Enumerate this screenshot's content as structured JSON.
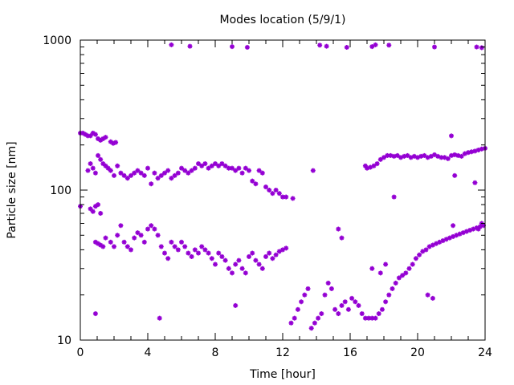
{
  "chart_data": {
    "type": "scatter",
    "title": "Modes location (5/9/1)",
    "xlabel": "Time [hour]",
    "ylabel": "Particle size [nm]",
    "xlim": [
      0,
      24
    ],
    "ylim": [
      10,
      1000
    ],
    "yscale": "log",
    "grid": false,
    "legend": "none",
    "marker_color": "#9400d3",
    "xticks": [
      0,
      4,
      8,
      12,
      16,
      20,
      24
    ],
    "xtick_labels": [
      "0",
      "4",
      "8",
      "12",
      "16",
      "20",
      "24"
    ],
    "yticks": [
      10,
      100,
      1000
    ],
    "ytick_labels": [
      "10",
      "100",
      "1000"
    ],
    "series": [
      {
        "x": [
          0.0,
          0.15,
          0.3,
          0.45,
          0.6,
          0.75,
          0.9,
          1.05,
          1.2,
          1.35,
          1.5,
          1.8,
          1.95,
          2.1,
          5.4,
          6.5,
          9.0,
          9.9,
          14.2,
          14.6,
          15.8,
          17.3,
          17.5,
          18.3,
          21.0,
          23.5,
          23.8
        ],
        "y": [
          240,
          240,
          235,
          230,
          230,
          240,
          235,
          220,
          215,
          220,
          225,
          210,
          205,
          208,
          930,
          910,
          905,
          895,
          925,
          910,
          895,
          905,
          930,
          925,
          900,
          900,
          890
        ]
      },
      {
        "x": [
          0.45,
          0.6,
          0.75,
          0.9,
          1.05,
          1.2,
          1.35,
          1.5,
          1.65,
          1.8,
          2.0,
          2.2,
          2.4,
          2.6,
          2.8,
          3.0,
          3.2,
          3.4,
          3.6,
          3.8,
          4.0,
          4.2,
          4.4,
          4.6,
          4.8,
          5.0,
          5.2,
          5.4,
          5.6,
          5.8,
          6.0,
          6.2,
          6.4,
          6.6,
          6.8,
          7.0,
          7.2,
          7.4,
          7.6,
          7.8,
          8.0,
          8.2,
          8.4,
          8.6,
          8.8,
          9.0,
          9.2,
          9.4,
          9.6,
          9.8,
          10.0,
          10.2,
          10.4,
          10.6,
          10.8,
          11.0,
          11.2,
          11.4,
          11.6,
          11.8,
          12.0,
          12.2,
          12.6,
          13.8,
          16.9,
          17.0,
          17.2,
          17.4,
          17.6,
          17.8,
          18.0,
          18.2,
          18.4,
          18.6,
          18.8,
          19.0,
          19.2,
          19.4,
          19.6,
          19.8,
          20.0,
          20.2,
          20.4,
          20.6,
          20.8,
          21.0,
          21.2,
          21.4,
          21.6,
          21.8,
          22.0,
          22.2,
          22.4,
          22.6,
          22.8,
          23.0,
          23.2,
          23.4,
          23.6,
          23.8,
          24.0,
          22.0,
          22.2,
          23.4
        ],
        "y": [
          135,
          150,
          140,
          130,
          170,
          160,
          150,
          145,
          140,
          135,
          125,
          145,
          130,
          125,
          120,
          125,
          130,
          135,
          130,
          125,
          140,
          110,
          130,
          120,
          125,
          130,
          135,
          120,
          125,
          130,
          140,
          135,
          130,
          135,
          140,
          150,
          145,
          150,
          140,
          145,
          150,
          145,
          150,
          145,
          140,
          140,
          135,
          140,
          130,
          140,
          135,
          115,
          110,
          135,
          130,
          105,
          100,
          95,
          100,
          95,
          90,
          90,
          88,
          135,
          145,
          140,
          142,
          145,
          150,
          160,
          165,
          170,
          170,
          168,
          170,
          165,
          168,
          170,
          165,
          168,
          165,
          168,
          170,
          165,
          168,
          172,
          168,
          165,
          165,
          162,
          170,
          172,
          170,
          168,
          175,
          178,
          180,
          182,
          185,
          188,
          190,
          230,
          125,
          112
        ]
      },
      {
        "x": [
          0.0,
          0.6,
          0.75,
          0.9,
          1.05,
          1.2,
          0.9,
          1.05,
          1.2,
          1.35,
          1.5,
          1.8,
          2.0,
          2.2,
          2.4,
          2.6,
          2.8,
          3.0,
          3.2,
          3.4,
          3.6,
          3.8,
          4.0,
          4.2,
          4.4,
          4.6,
          4.8,
          5.0,
          5.2,
          5.4,
          5.6,
          5.8,
          6.0,
          6.2,
          6.4,
          6.6,
          6.8,
          7.0,
          7.2,
          7.4,
          7.6,
          7.8,
          8.0,
          8.2,
          8.4,
          8.6,
          8.8,
          9.0,
          9.2,
          9.4,
          9.6,
          9.8,
          10.0,
          10.2,
          10.4,
          10.6,
          10.8,
          11.0,
          11.2,
          11.4,
          11.6,
          11.8,
          12.0,
          12.2,
          4.7,
          0.9,
          9.2,
          22.1,
          23.6,
          23.8,
          15.3,
          15.5
        ],
        "y": [
          78,
          75,
          72,
          78,
          80,
          70,
          45,
          44,
          43,
          42,
          48,
          45,
          42,
          50,
          58,
          45,
          42,
          40,
          48,
          52,
          50,
          45,
          55,
          58,
          55,
          50,
          42,
          38,
          35,
          45,
          42,
          40,
          45,
          42,
          38,
          36,
          40,
          38,
          42,
          40,
          38,
          35,
          32,
          38,
          36,
          34,
          30,
          28,
          32,
          34,
          30,
          28,
          36,
          38,
          34,
          32,
          30,
          36,
          38,
          35,
          37,
          39,
          40,
          41,
          14,
          15,
          17,
          58,
          55,
          60,
          55,
          48
        ]
      },
      {
        "x": [
          12.5,
          12.7,
          12.9,
          13.1,
          13.3,
          13.5,
          13.7,
          13.9,
          14.1,
          14.3,
          14.5,
          14.7,
          14.9,
          15.1,
          15.3,
          15.5,
          15.7,
          15.9,
          16.1,
          16.3,
          16.5,
          16.7,
          16.9,
          17.1,
          17.3,
          17.5,
          17.7,
          17.9,
          18.1,
          18.3,
          18.5,
          18.7,
          18.9,
          19.1,
          19.3,
          19.5,
          19.7,
          19.9,
          20.1,
          20.3,
          20.5,
          20.7,
          20.9,
          21.1,
          21.3,
          21.5,
          21.7,
          21.9,
          22.1,
          22.3,
          22.5,
          22.7,
          22.9,
          23.1,
          23.3,
          23.5,
          23.7,
          23.9,
          17.3,
          17.8,
          18.1,
          20.6,
          20.9,
          18.6
        ],
        "y": [
          13,
          14,
          16,
          18,
          20,
          22,
          12,
          13,
          14,
          15,
          20,
          24,
          22,
          16,
          15,
          17,
          18,
          16,
          19,
          18,
          17,
          15,
          14,
          14,
          14,
          14,
          15,
          16,
          18,
          20,
          22,
          24,
          26,
          27,
          28,
          30,
          32,
          35,
          37,
          39,
          40,
          42,
          43,
          44,
          45,
          46,
          47,
          48,
          49,
          50,
          51,
          52,
          53,
          54,
          55,
          56,
          57,
          58,
          30,
          28,
          32,
          20,
          19,
          90
        ]
      }
    ]
  }
}
